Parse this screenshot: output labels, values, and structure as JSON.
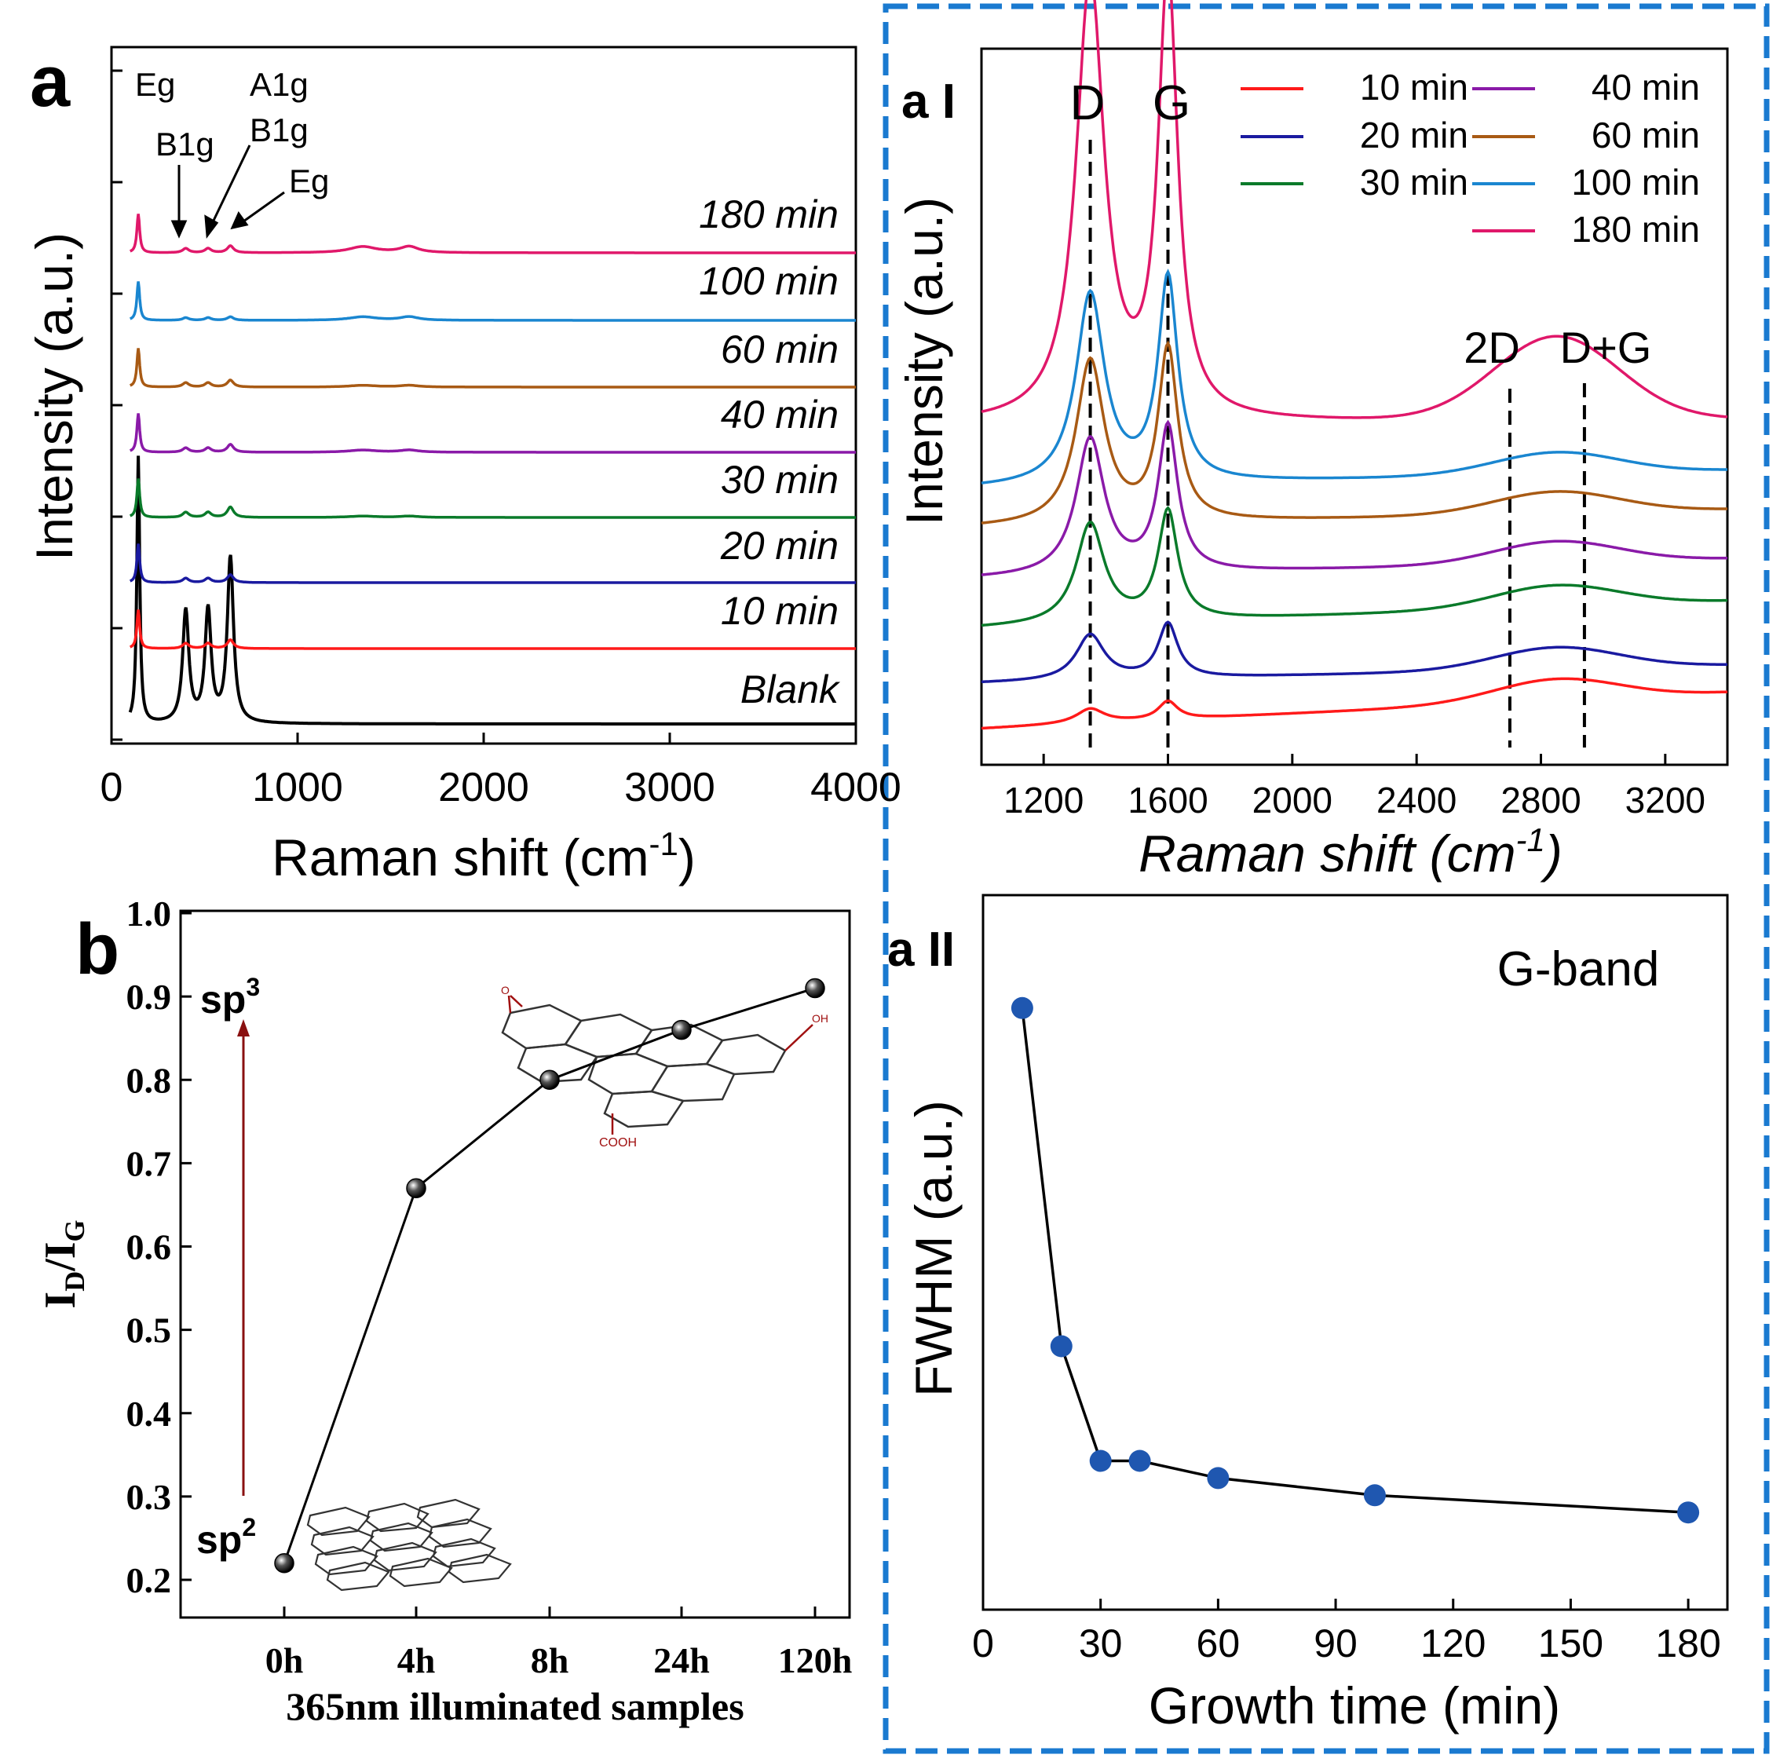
{
  "colors": {
    "blank": "#000000",
    "t10": "#ff1a1a",
    "t20": "#1a1aa0",
    "t30": "#0a7a2a",
    "t40": "#8a1aa8",
    "t60": "#a85a14",
    "t100": "#1a86d0",
    "t180": "#e0186a",
    "dashed_frame": "#1a7ad0",
    "arrow": "#8a1010",
    "point_blue": "#1f57b0"
  },
  "panels": {
    "a": {
      "label": "a",
      "ylabel": "Intensity (a.u.)",
      "xlabel": "Raman shift (cm",
      "xlabel_sup": "-1",
      "xlabel_close": ")",
      "peaks": [
        "Eg",
        "B1g",
        "A1g",
        "B1g",
        "Eg"
      ],
      "series_labels": [
        "180 min",
        "100 min",
        "60 min",
        "40 min",
        "30 min",
        "20 min",
        "10 min",
        "Blank"
      ]
    },
    "aI": {
      "label": "a I",
      "ylabel": "Intensity (a.u.)",
      "xlabel": "Raman shift (cm",
      "xlabel_sup": "-1",
      "xlabel_close": ")",
      "band_labels": [
        "D",
        "G",
        "2D",
        "D+G"
      ],
      "legend": [
        "10 min",
        "20 min",
        "30 min",
        "40 min",
        "60 min",
        "100 min",
        "180 min"
      ]
    },
    "aII": {
      "label": "a II",
      "ylabel": "FWHM (a.u.)",
      "xlabel": "Growth time (min)",
      "annotation": "G-band"
    },
    "b": {
      "label": "b",
      "ylabel_main": "I",
      "ylabel_sub1": "D",
      "ylabel_slash": "/I",
      "ylabel_sub2": "G",
      "xlabel": "365nm illuminated samples",
      "sp3": "sp",
      "sp3_sup": "3",
      "sp2": "sp",
      "sp2_sup": "2",
      "cooh": "COOH",
      "oh": "OH",
      "o": "O"
    }
  },
  "chart_data": [
    {
      "id": "panel-a",
      "type": "line",
      "title": "",
      "xlabel": "Raman shift (cm-1)",
      "ylabel": "Intensity (a.u.)",
      "xlim": [
        0,
        4000
      ],
      "xticks": [
        0,
        1000,
        2000,
        3000,
        4000
      ],
      "series": [
        {
          "name": "Blank",
          "offset": 0,
          "modes": [
            [
              144,
              1.0
            ],
            [
              399,
              0.42
            ],
            [
              519,
              0.42
            ],
            [
              639,
              0.62
            ]
          ],
          "carbon": [
            0,
            0
          ]
        },
        {
          "name": "10 min",
          "offset": 1,
          "modes": [
            [
              144,
              0.45
            ],
            [
              399,
              0.06
            ],
            [
              519,
              0.06
            ],
            [
              639,
              0.1
            ]
          ],
          "carbon": [
            0,
            0
          ]
        },
        {
          "name": "20 min",
          "offset": 2,
          "modes": [
            [
              144,
              0.45
            ],
            [
              399,
              0.05
            ],
            [
              519,
              0.05
            ],
            [
              639,
              0.09
            ]
          ],
          "carbon": [
            0,
            0
          ]
        },
        {
          "name": "30 min",
          "offset": 3,
          "modes": [
            [
              144,
              0.45
            ],
            [
              399,
              0.06
            ],
            [
              519,
              0.06
            ],
            [
              639,
              0.12
            ]
          ],
          "carbon": [
            0.015,
            0.015
          ]
        },
        {
          "name": "40 min",
          "offset": 4,
          "modes": [
            [
              144,
              0.45
            ],
            [
              399,
              0.05
            ],
            [
              519,
              0.05
            ],
            [
              639,
              0.09
            ]
          ],
          "carbon": [
            0.025,
            0.025
          ]
        },
        {
          "name": "60 min",
          "offset": 5,
          "modes": [
            [
              144,
              0.45
            ],
            [
              399,
              0.05
            ],
            [
              519,
              0.05
            ],
            [
              639,
              0.08
            ]
          ],
          "carbon": [
            0.02,
            0.02
          ]
        },
        {
          "name": "100 min",
          "offset": 6,
          "modes": [
            [
              144,
              0.45
            ],
            [
              399,
              0.03
            ],
            [
              519,
              0.03
            ],
            [
              639,
              0.04
            ]
          ],
          "carbon": [
            0.04,
            0.04
          ]
        },
        {
          "name": "180 min",
          "offset": 7,
          "modes": [
            [
              144,
              0.45
            ],
            [
              399,
              0.05
            ],
            [
              519,
              0.05
            ],
            [
              639,
              0.08
            ]
          ],
          "carbon": [
            0.07,
            0.07
          ]
        }
      ]
    },
    {
      "id": "panel-a-I",
      "type": "line",
      "xlabel": "Raman shift (cm-1)",
      "ylabel": "Intensity (a.u.)",
      "xlim": [
        1000,
        3400
      ],
      "xticks": [
        1200,
        1600,
        2000,
        2400,
        2800,
        3200
      ],
      "reference_lines": [
        {
          "name": "D",
          "x": 1350
        },
        {
          "name": "G",
          "x": 1600
        },
        {
          "name": "2D",
          "x": 2700
        },
        {
          "name": "D+G",
          "x": 2940
        }
      ],
      "series": [
        {
          "name": "10 min",
          "D": 0.08,
          "G": 0.1,
          "base_start": 0.0,
          "base_end": 0.2
        },
        {
          "name": "20 min",
          "D": 0.25,
          "G": 0.3,
          "base_start": 0.3,
          "base_end": 0.4
        },
        {
          "name": "30 min",
          "D": 0.55,
          "G": 0.6,
          "base_start": 0.4,
          "base_end": 0.55
        },
        {
          "name": "40 min",
          "D": 0.75,
          "G": 0.8,
          "base_start": 0.55,
          "base_end": 0.66
        },
        {
          "name": "60 min",
          "D": 0.9,
          "G": 0.95,
          "base_start": 0.85,
          "base_end": 0.95
        },
        {
          "name": "100 min",
          "D": 1.05,
          "G": 1.12,
          "base_start": 1.1,
          "base_end": 1.2
        },
        {
          "name": "180 min",
          "D": 1.85,
          "G": 1.85,
          "base_start": 1.4,
          "base_end": 1.42
        }
      ]
    },
    {
      "id": "panel-a-II",
      "type": "line",
      "title": "G-band",
      "xlabel": "Growth time (min)",
      "ylabel": "FWHM (a.u.)",
      "xlim": [
        0,
        190
      ],
      "xticks": [
        0,
        30,
        60,
        90,
        120,
        150,
        180
      ],
      "ylim": [
        0,
        1
      ],
      "x": [
        10,
        20,
        30,
        40,
        60,
        100,
        180
      ],
      "y": [
        0.94,
        0.35,
        0.15,
        0.15,
        0.12,
        0.09,
        0.06
      ]
    },
    {
      "id": "panel-b",
      "type": "line",
      "xlabel": "365nm illuminated samples",
      "ylabel": "ID/IG",
      "categories": [
        "0h",
        "4h",
        "8h",
        "24h",
        "120h"
      ],
      "values": [
        0.22,
        0.67,
        0.8,
        0.86,
        0.91
      ],
      "ylim": [
        0.15,
        1.0
      ],
      "yticks": [
        0.2,
        0.3,
        0.4,
        0.5,
        0.6,
        0.7,
        0.8,
        0.9,
        1.0
      ]
    }
  ]
}
